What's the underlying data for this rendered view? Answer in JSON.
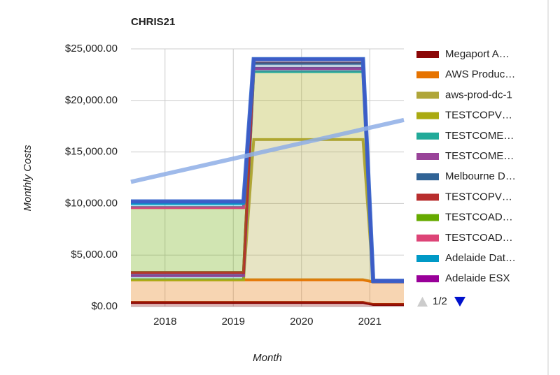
{
  "chart_data": {
    "type": "area",
    "title": "CHRIS21",
    "x_label": "Month",
    "y_label": "Monthly Costs",
    "stacked": true,
    "x": [
      2017.5,
      2019.15,
      2019.3,
      2020.9,
      2021.05,
      2021.5
    ],
    "xlim": [
      2017.5,
      2021.5
    ],
    "xticks": [
      2018,
      2019,
      2020,
      2021
    ],
    "ylim": [
      0,
      25000
    ],
    "yticks": [
      {
        "value": 0,
        "label": "$0.00"
      },
      {
        "value": 5000,
        "label": "$5,000.00"
      },
      {
        "value": 10000,
        "label": "$10,000.00"
      },
      {
        "value": 15000,
        "label": "$15,000.00"
      },
      {
        "value": 20000,
        "label": "$20,000.00"
      },
      {
        "value": 25000,
        "label": "$25,000.00"
      }
    ],
    "grid": true,
    "legend": "right",
    "legend_page": "1/2",
    "series": [
      {
        "name": "Megaport A…",
        "color": "#8b0707",
        "values": [
          400,
          400,
          400,
          400,
          200,
          200
        ]
      },
      {
        "name": "AWS Produc…",
        "color": "#e67300",
        "values": [
          2200,
          2200,
          2200,
          2200,
          2200,
          2200
        ]
      },
      {
        "name": "aws-prod-dc-1",
        "color": "#b0a63a",
        "values": [
          0,
          0,
          13600,
          13600,
          0,
          0
        ]
      },
      {
        "name": "TESTCOPV…",
        "color": "#aaaa11",
        "values": [
          0,
          0,
          6600,
          6600,
          0,
          0
        ]
      },
      {
        "name": "TESTCOME…",
        "color": "#22aa99",
        "values": [
          400,
          400,
          0,
          0,
          0,
          0
        ]
      },
      {
        "name": "TESTCOME…",
        "color": "#994499",
        "values": [
          0,
          0,
          300,
          300,
          0,
          0
        ]
      },
      {
        "name": "Melbourne D…",
        "color": "#316395",
        "values": [
          300,
          300,
          500,
          500,
          100,
          100
        ]
      },
      {
        "name": "TESTCOPV…",
        "color": "#b82e2e",
        "values": [
          0,
          0,
          400,
          400,
          0,
          0
        ]
      },
      {
        "name": "TESTCOAD…",
        "color": "#66aa00",
        "values": [
          6300,
          6300,
          0,
          0,
          0,
          0
        ]
      },
      {
        "name": "TESTCOAD…",
        "color": "#dd4477",
        "values": [
          0,
          0,
          0,
          0,
          0,
          0
        ]
      },
      {
        "name": "Adelaide Dat…",
        "color": "#0099c6",
        "values": [
          400,
          400,
          0,
          0,
          0,
          0
        ]
      },
      {
        "name": "Adelaide ESX",
        "color": "#990099",
        "values": [
          200,
          200,
          0,
          0,
          0,
          0
        ]
      }
    ],
    "trendline": {
      "color": "#8eaee6",
      "x": [
        2017.5,
        2021.5
      ],
      "values": [
        12100,
        18100
      ]
    }
  }
}
